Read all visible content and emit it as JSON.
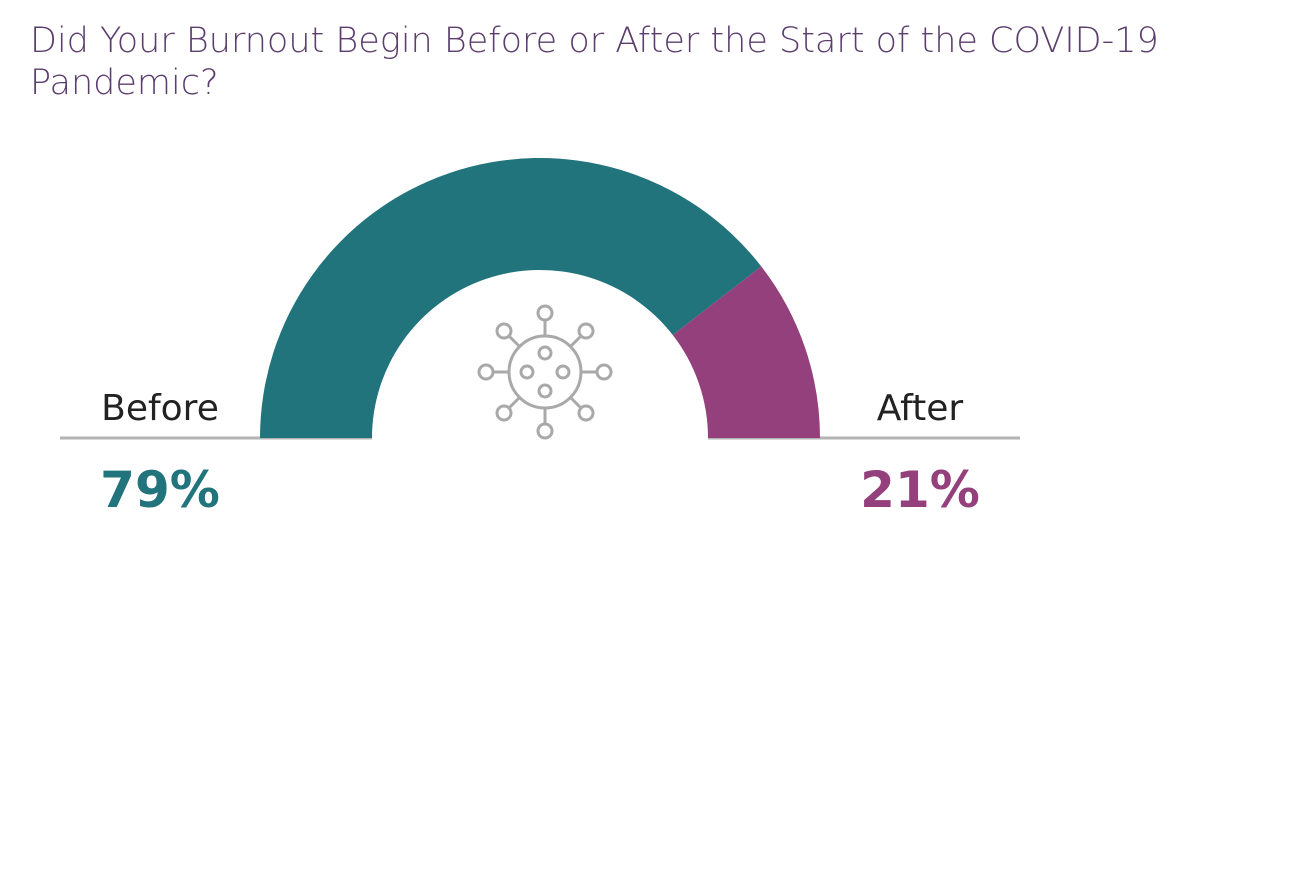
{
  "chart_data": {
    "type": "halfdonut",
    "title": "Did Your Burnout Begin Before or After the Start of the COVID-19 Pandemic?",
    "categories": [
      "Before",
      "After"
    ],
    "values": [
      79,
      21
    ],
    "value_labels": [
      "79%",
      "21%"
    ],
    "colors": [
      "#21737c",
      "#93407c"
    ]
  }
}
